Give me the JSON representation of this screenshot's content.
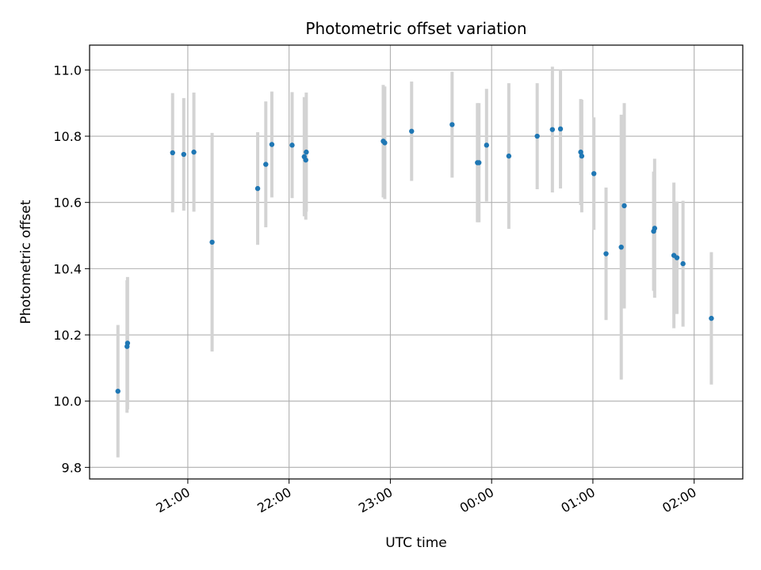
{
  "chart_data": {
    "type": "scatter",
    "title": "Photometric offset variation",
    "xlabel": "UTC time",
    "ylabel": "Photometric offset",
    "x_unit": "UTC time (hours, values past 24 are after midnight)",
    "xlim": [
      20.03,
      26.48
    ],
    "ylim": [
      9.765,
      11.075
    ],
    "x_ticks": [
      {
        "value": 21,
        "label": "21:00"
      },
      {
        "value": 22,
        "label": "22:00"
      },
      {
        "value": 23,
        "label": "23:00"
      },
      {
        "value": 24,
        "label": "00:00"
      },
      {
        "value": 25,
        "label": "01:00"
      },
      {
        "value": 26,
        "label": "02:00"
      }
    ],
    "y_ticks": [
      {
        "value": 9.8,
        "label": "9.8"
      },
      {
        "value": 10.0,
        "label": "10.0"
      },
      {
        "value": 10.2,
        "label": "10.2"
      },
      {
        "value": 10.4,
        "label": "10.4"
      },
      {
        "value": 10.6,
        "label": "10.6"
      },
      {
        "value": 10.8,
        "label": "10.8"
      },
      {
        "value": 11.0,
        "label": "11.0"
      }
    ],
    "grid": true,
    "marker_color": "#1f77b4",
    "errorbar_color": "#d3d3d3",
    "points": [
      {
        "x": 20.31,
        "y": 10.03,
        "err": 0.2
      },
      {
        "x": 20.4,
        "y": 10.165,
        "err": 0.2
      },
      {
        "x": 20.405,
        "y": 10.175,
        "err": 0.2
      },
      {
        "x": 20.85,
        "y": 10.75,
        "err": 0.18
      },
      {
        "x": 20.96,
        "y": 10.745,
        "err": 0.17
      },
      {
        "x": 21.06,
        "y": 10.752,
        "err": 0.18
      },
      {
        "x": 21.24,
        "y": 10.48,
        "err": 0.33
      },
      {
        "x": 21.69,
        "y": 10.642,
        "err": 0.17
      },
      {
        "x": 21.77,
        "y": 10.715,
        "err": 0.19
      },
      {
        "x": 21.83,
        "y": 10.775,
        "err": 0.16
      },
      {
        "x": 22.03,
        "y": 10.773,
        "err": 0.16
      },
      {
        "x": 22.15,
        "y": 10.738,
        "err": 0.18
      },
      {
        "x": 22.165,
        "y": 10.728,
        "err": 0.18
      },
      {
        "x": 22.17,
        "y": 10.752,
        "err": 0.18
      },
      {
        "x": 22.93,
        "y": 10.785,
        "err": 0.17
      },
      {
        "x": 22.945,
        "y": 10.78,
        "err": 0.17
      },
      {
        "x": 23.21,
        "y": 10.815,
        "err": 0.15
      },
      {
        "x": 23.61,
        "y": 10.835,
        "err": 0.16
      },
      {
        "x": 23.86,
        "y": 10.72,
        "err": 0.18
      },
      {
        "x": 23.875,
        "y": 10.72,
        "err": 0.18
      },
      {
        "x": 23.95,
        "y": 10.773,
        "err": 0.17
      },
      {
        "x": 24.17,
        "y": 10.74,
        "err": 0.22
      },
      {
        "x": 24.45,
        "y": 10.8,
        "err": 0.16
      },
      {
        "x": 24.6,
        "y": 10.82,
        "err": 0.19
      },
      {
        "x": 24.68,
        "y": 10.822,
        "err": 0.18
      },
      {
        "x": 24.88,
        "y": 10.752,
        "err": 0.16
      },
      {
        "x": 24.89,
        "y": 10.74,
        "err": 0.17
      },
      {
        "x": 25.01,
        "y": 10.687,
        "err": 0.17
      },
      {
        "x": 25.13,
        "y": 10.445,
        "err": 0.2
      },
      {
        "x": 25.28,
        "y": 10.465,
        "err": 0.4
      },
      {
        "x": 25.31,
        "y": 10.59,
        "err": 0.31
      },
      {
        "x": 25.6,
        "y": 10.513,
        "err": 0.18
      },
      {
        "x": 25.61,
        "y": 10.522,
        "err": 0.21
      },
      {
        "x": 25.8,
        "y": 10.44,
        "err": 0.22
      },
      {
        "x": 25.83,
        "y": 10.433,
        "err": 0.17
      },
      {
        "x": 25.89,
        "y": 10.415,
        "err": 0.19
      },
      {
        "x": 26.17,
        "y": 10.25,
        "err": 0.2
      }
    ]
  }
}
